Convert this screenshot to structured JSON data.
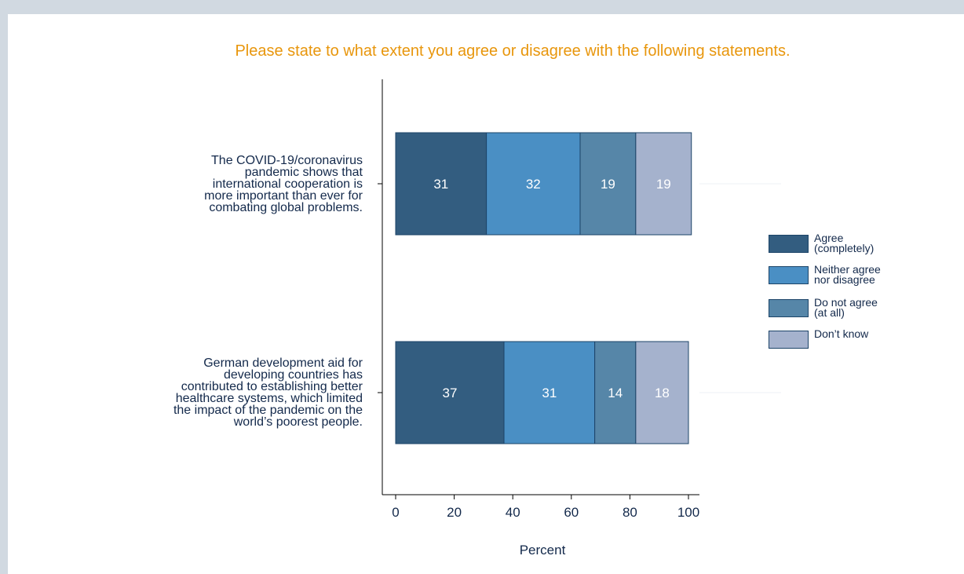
{
  "chart_data": {
    "type": "bar",
    "orientation": "horizontal",
    "stacked": true,
    "title": "Please state to what extent you agree or disagree with the following statements.",
    "xlabel": "Percent",
    "xlim": [
      0,
      100
    ],
    "xticks": [
      "0",
      "20",
      "40",
      "60",
      "80",
      "100"
    ],
    "categories": [
      "The COVID-19/coronavirus pandemic shows that international cooperation is more important than ever for combating global problems.",
      "German development aid for developing countries has contributed to establishing better healthcare systems, which limited the impact of the pandemic on the world’s poorest people."
    ],
    "category_lines": [
      [
        "The COVID-19/coronavirus",
        "pandemic shows that",
        "international cooperation is",
        "more important than ever for",
        "combating global problems."
      ],
      [
        "German development aid for",
        "developing countries has",
        "contributed to establishing better",
        "healthcare systems, which limited",
        "the impact of the pandemic on the",
        "world’s poorest people."
      ]
    ],
    "series": [
      {
        "name": "Agree (completely)",
        "legend_lines": [
          "Agree",
          "(completely)"
        ],
        "values": [
          31,
          37
        ],
        "color": "#335d80"
      },
      {
        "name": "Neither agree nor disagree",
        "legend_lines": [
          "Neither agree",
          "nor disagree"
        ],
        "values": [
          32,
          31
        ],
        "color": "#4a8fc4"
      },
      {
        "name": "Do not agree (at all)",
        "legend_lines": [
          "Do not agree",
          "(at all)"
        ],
        "values": [
          19,
          14
        ],
        "color": "#5686a8"
      },
      {
        "name": "Don’t know",
        "legend_lines": [
          "Don’t know"
        ],
        "values": [
          19,
          18
        ],
        "color": "#a5b2cd"
      }
    ],
    "data_labels": true,
    "legend_position": "right",
    "grid": false
  },
  "colors": {
    "title": "#e8960c",
    "text": "#13294b",
    "axis": "#000000",
    "bar_border": "#1c4468",
    "label_on_bar": "#ffffff"
  }
}
